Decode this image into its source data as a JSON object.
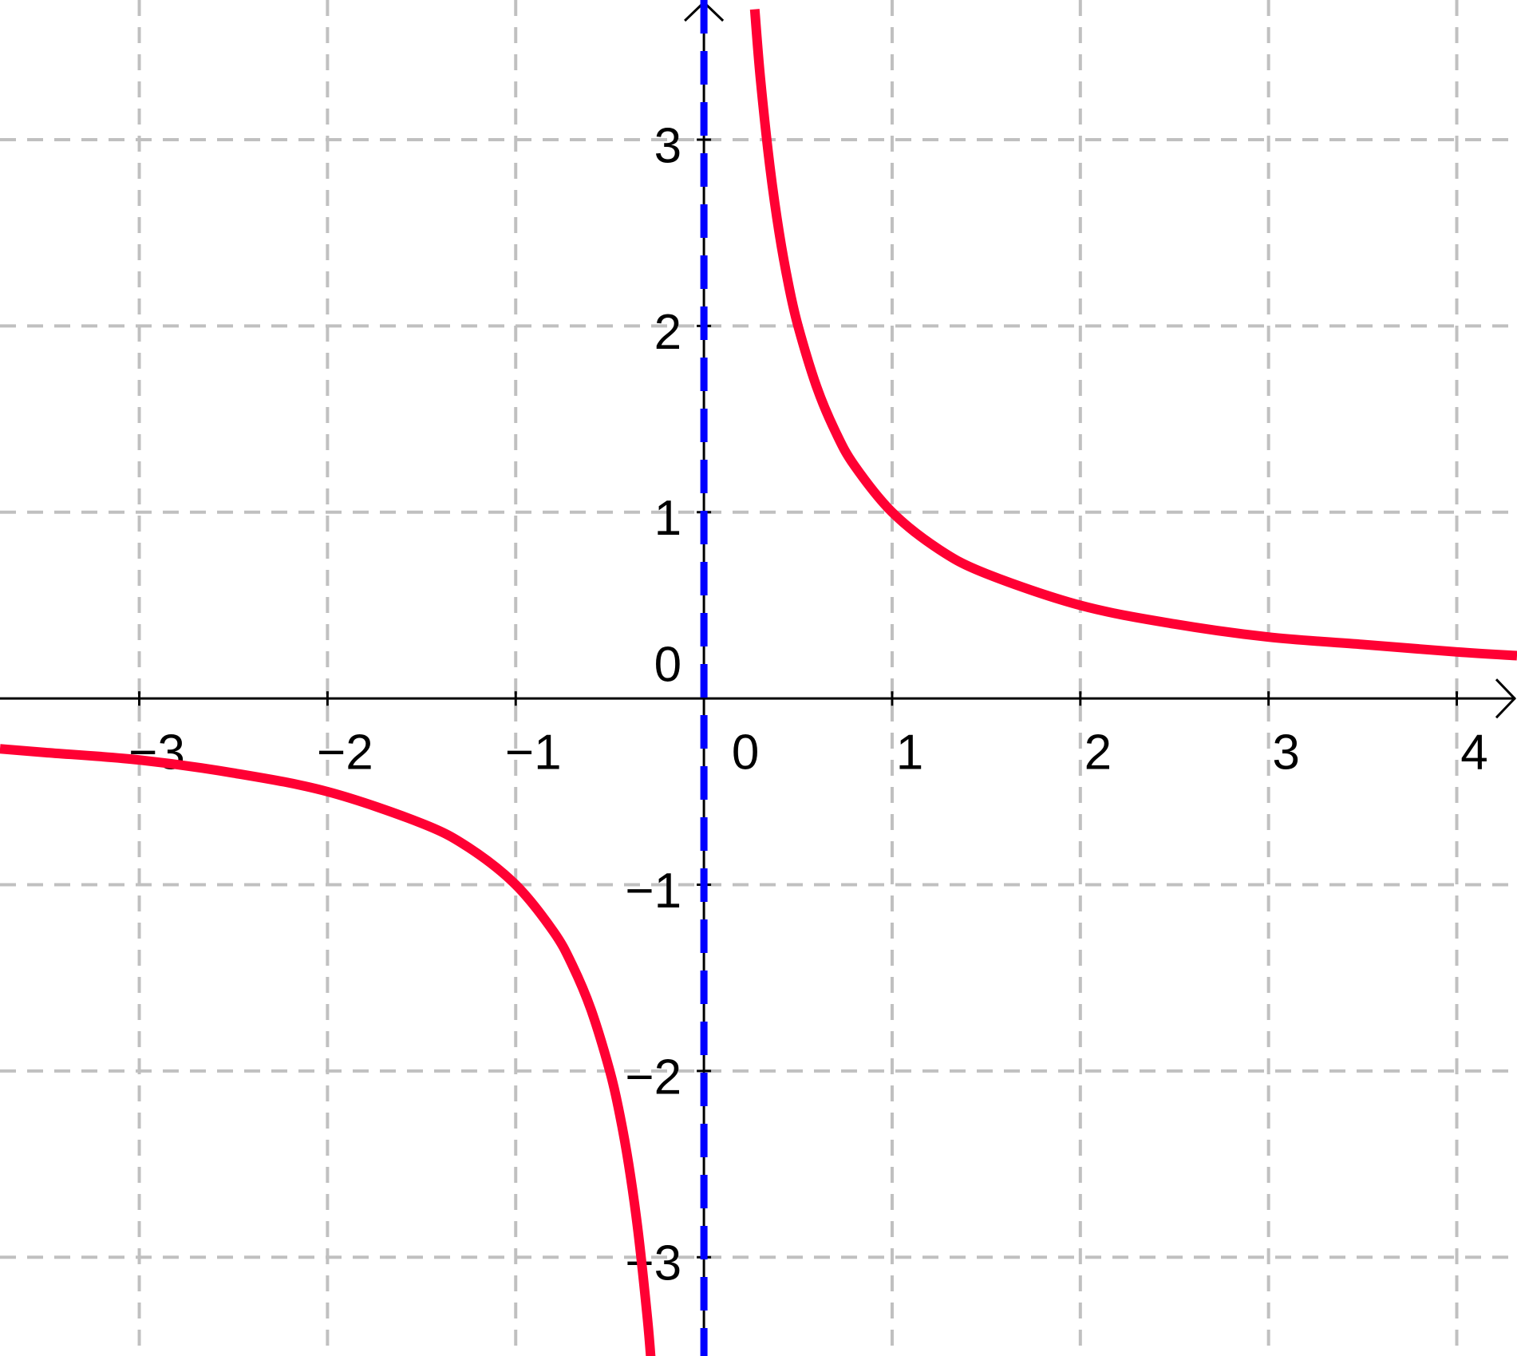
{
  "chart_data": {
    "type": "line",
    "x": [
      -3.74,
      -3.5,
      -3,
      -2.5,
      -2,
      -1.5,
      -1.25,
      -1,
      -0.8,
      -0.7,
      -0.6,
      -0.5,
      -0.45,
      -0.4,
      -0.35,
      -0.3,
      -0.28,
      0,
      0.27,
      0.3,
      0.35,
      0.4,
      0.45,
      0.5,
      0.6,
      0.7,
      0.8,
      1,
      1.25,
      1.5,
      2,
      2.5,
      3,
      3.5,
      4,
      4.32
    ],
    "series": [
      {
        "color": "#ff0033",
        "values": [
          -0.27,
          -0.29,
          -0.33,
          -0.4,
          -0.5,
          -0.67,
          -0.8,
          -1,
          -1.25,
          -1.43,
          -1.67,
          -2,
          -2.22,
          -2.5,
          -2.86,
          -3.33,
          -3.57,
          null,
          3.7,
          3.33,
          2.86,
          2.5,
          2.22,
          2,
          1.67,
          1.43,
          1.25,
          1,
          0.8,
          0.67,
          0.5,
          0.4,
          0.33,
          0.29,
          0.25,
          0.23
        ]
      }
    ],
    "asymptote": {
      "x": 0,
      "color": "#0000ff"
    },
    "xlim": [
      -3.74,
      4.32
    ],
    "ylim": [
      -3.53,
      3.75
    ],
    "xticks": [
      {
        "value": -3,
        "label": "−3"
      },
      {
        "value": -2,
        "label": "−2"
      },
      {
        "value": -1,
        "label": "−1"
      },
      0,
      1,
      2,
      3,
      4
    ],
    "yticks": [
      {
        "value": -3,
        "label": "−3"
      },
      {
        "value": -2,
        "label": "−2"
      },
      {
        "value": -1,
        "label": "−1"
      },
      0,
      1,
      2,
      3
    ],
    "grid": true
  }
}
